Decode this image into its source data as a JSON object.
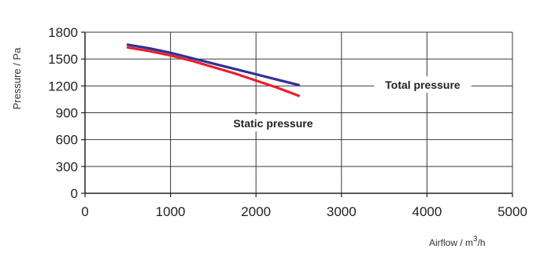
{
  "chart_data": {
    "type": "line",
    "title": "",
    "xlabel": "Airflow / m",
    "xlabel_sup": "3",
    "xlabel_tail": "/h",
    "ylabel": "Pressure / Pa",
    "xlim": [
      0,
      5000
    ],
    "ylim": [
      0,
      1800
    ],
    "xticks": [
      0,
      1000,
      2000,
      3000,
      4000,
      5000
    ],
    "yticks": [
      0,
      300,
      600,
      900,
      1200,
      1500,
      1800
    ],
    "x_tick_labels": [
      "0",
      "1000",
      "2000",
      "3000",
      "4000",
      "5000"
    ],
    "y_tick_labels": [
      "0",
      "300",
      "600",
      "900",
      "1200",
      "1500",
      "1800"
    ],
    "grid": true,
    "series": [
      {
        "name": "Total pressure",
        "color": "#2e3192",
        "x": [
          500,
          750,
          1000,
          1250,
          1500,
          1750,
          2000,
          2250,
          2500
        ],
        "y": [
          1660,
          1620,
          1570,
          1510,
          1450,
          1390,
          1330,
          1270,
          1210
        ]
      },
      {
        "name": "Static pressure",
        "color": "#e8202a",
        "x": [
          500,
          750,
          1000,
          1250,
          1500,
          1750,
          2000,
          2250,
          2500
        ],
        "y": [
          1630,
          1590,
          1540,
          1480,
          1410,
          1340,
          1260,
          1180,
          1090
        ]
      }
    ],
    "annotations": [
      {
        "text": "Total pressure",
        "x": 3950,
        "y": 1210
      },
      {
        "text": "Static pressure",
        "x": 2200,
        "y": 780
      }
    ]
  }
}
